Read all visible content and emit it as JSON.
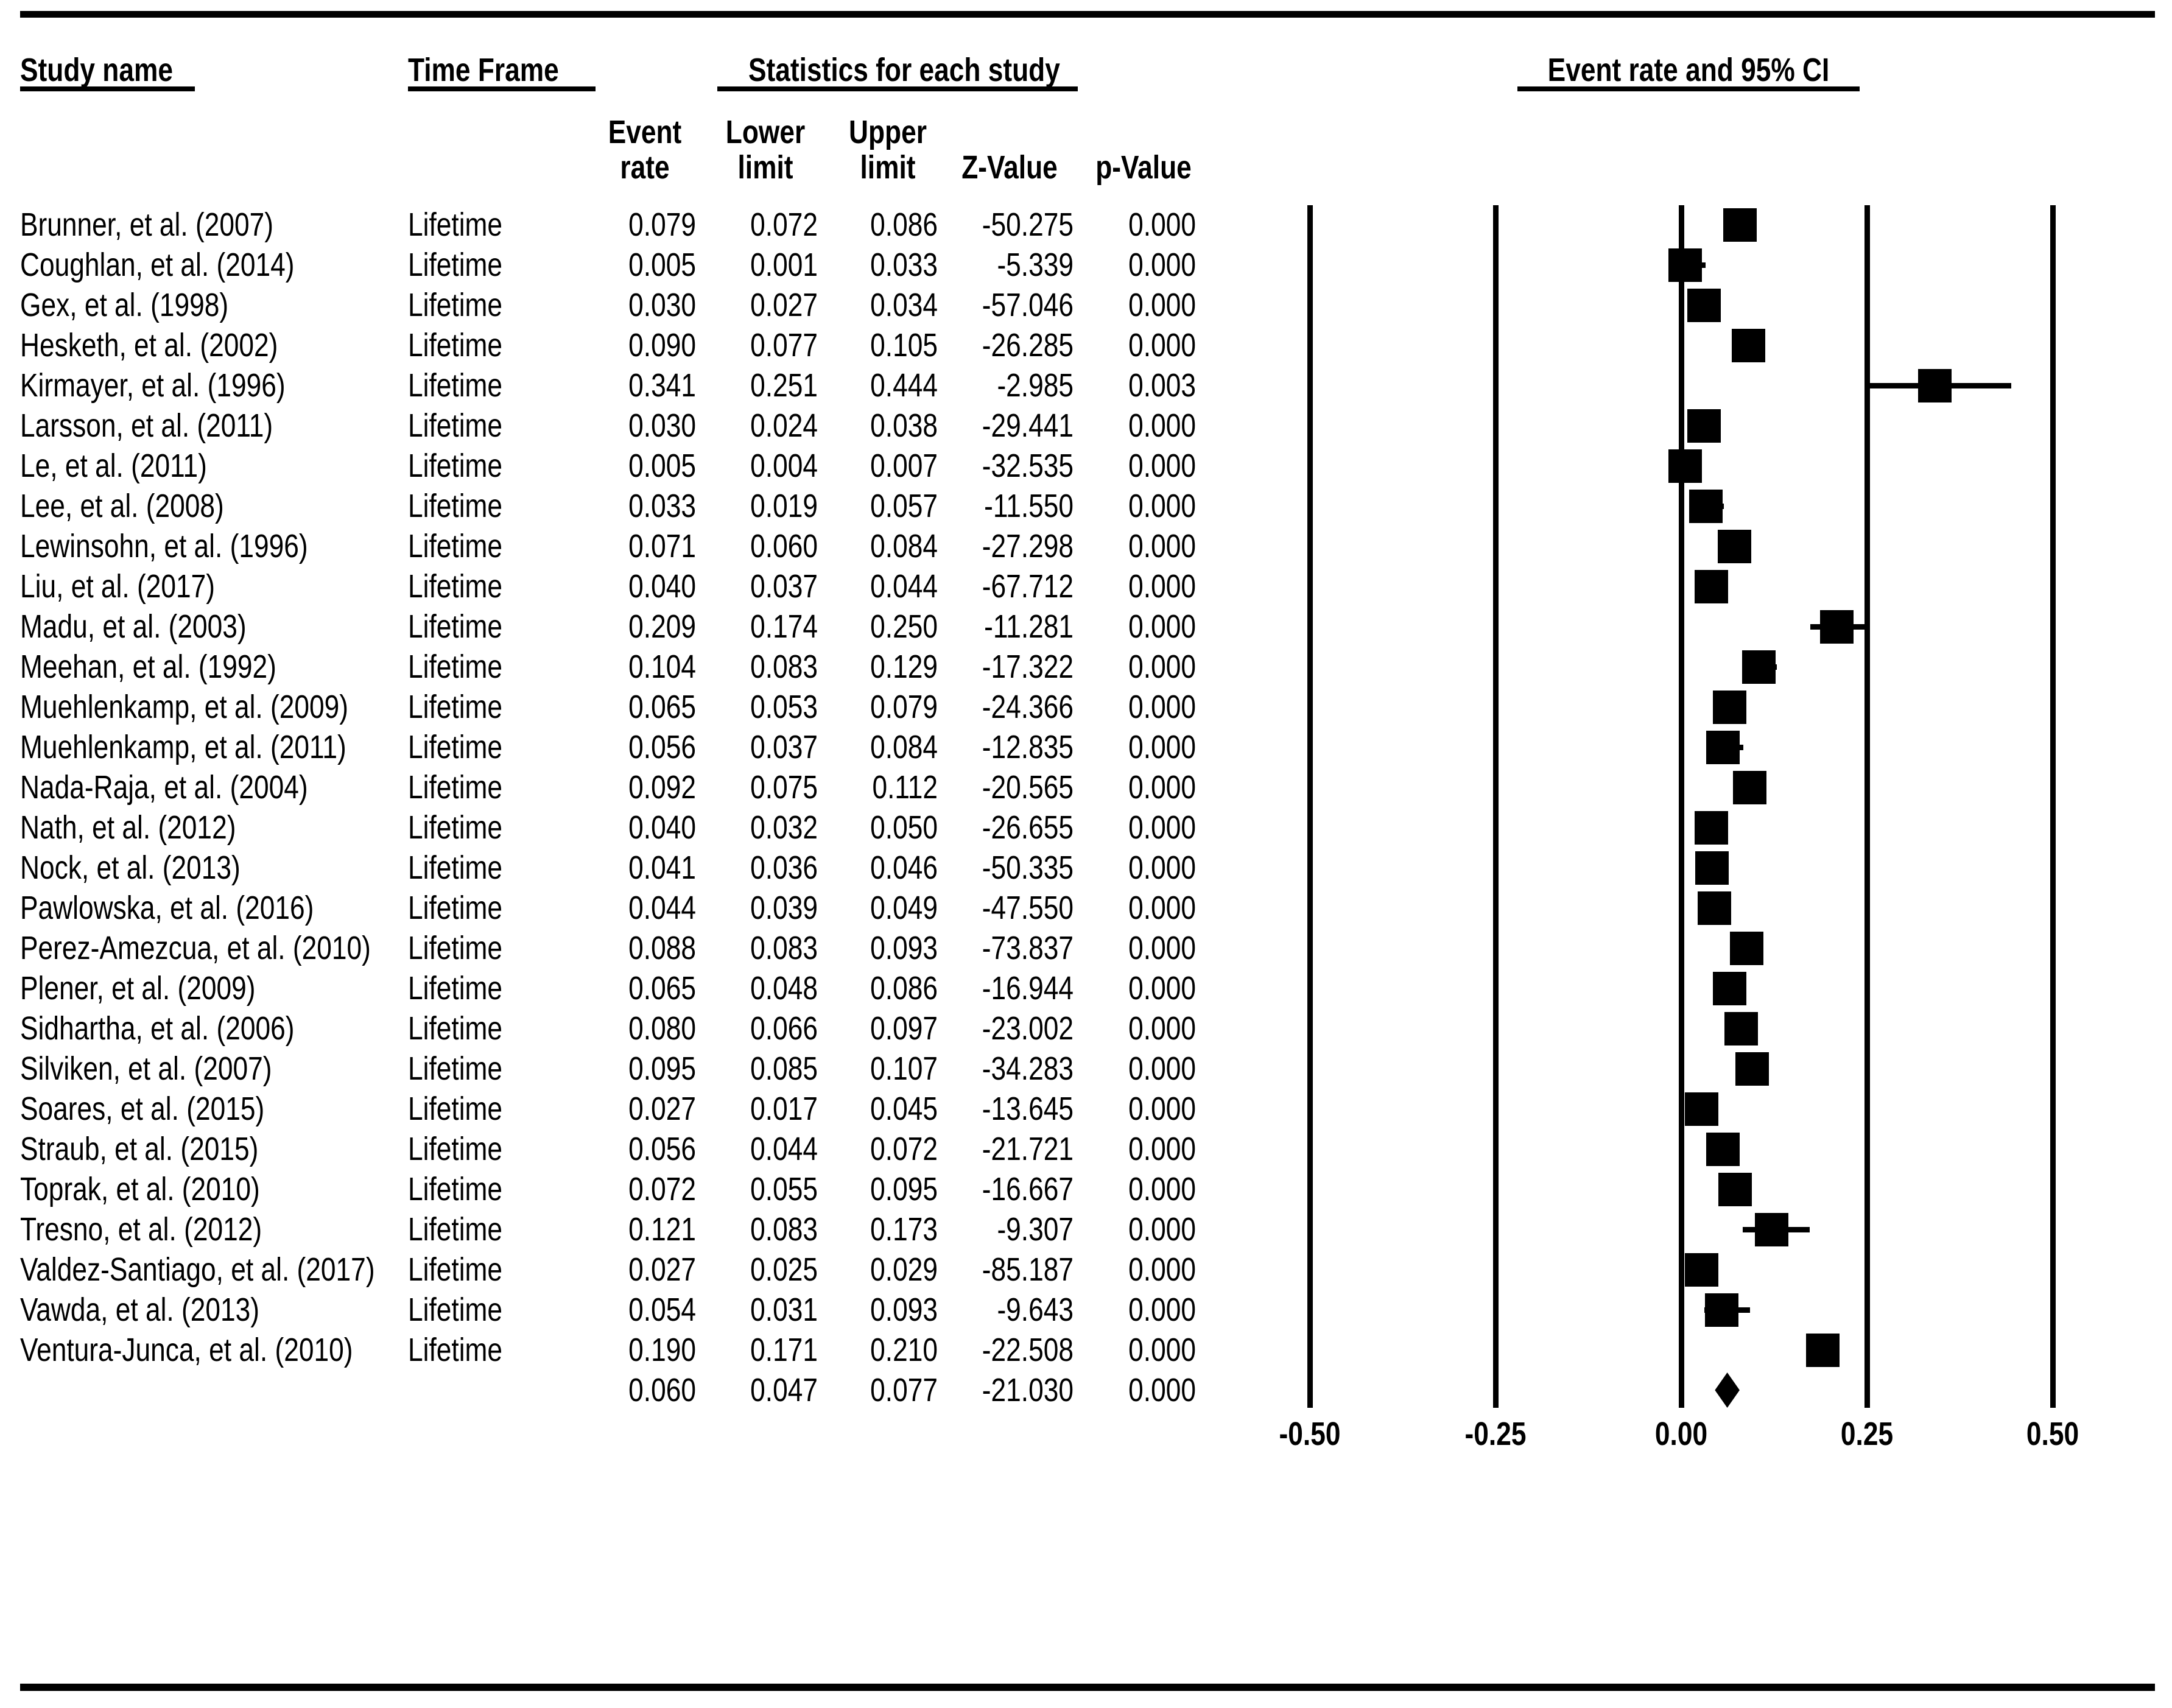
{
  "header": {
    "study_name": "Study name",
    "time_frame": "Time Frame",
    "stats_group": "Statistics for each study",
    "plot_group": "Event rate and 95% CI",
    "sub": {
      "event_1": "Event",
      "event_2": "rate",
      "lower_1": "Lower",
      "lower_2": "limit",
      "upper_1": "Upper",
      "upper_2": "limit",
      "z": "Z-Value",
      "p": "p-Value"
    }
  },
  "colors": {
    "ink": "#000000",
    "background": "#ffffff"
  },
  "chart_data": {
    "type": "scatter",
    "variant": "forest-plot-meta-analysis",
    "title": "Event rate and 95% CI",
    "x_axis": {
      "ticks": [
        "-0.50",
        "-0.25",
        "0.00",
        "0.25",
        "0.50"
      ],
      "tick_values": [
        -0.5,
        -0.25,
        0.0,
        0.25,
        0.5
      ],
      "range": [
        -0.5,
        0.5
      ],
      "gridlines": true
    },
    "legend_position": "none",
    "marker": "square",
    "summary_marker": "diamond",
    "studies": [
      {
        "name": "Brunner, et al. (2007)",
        "time_frame": "Lifetime",
        "event_rate": "0.079",
        "lower_limit": "0.072",
        "upper_limit": "0.086",
        "z_value": "-50.275",
        "p_value": "0.000"
      },
      {
        "name": "Coughlan, et al. (2014)",
        "time_frame": "Lifetime",
        "event_rate": "0.005",
        "lower_limit": "0.001",
        "upper_limit": "0.033",
        "z_value": "-5.339",
        "p_value": "0.000"
      },
      {
        "name": "Gex, et al. (1998)",
        "time_frame": "Lifetime",
        "event_rate": "0.030",
        "lower_limit": "0.027",
        "upper_limit": "0.034",
        "z_value": "-57.046",
        "p_value": "0.000"
      },
      {
        "name": "Hesketh, et al. (2002)",
        "time_frame": "Lifetime",
        "event_rate": "0.090",
        "lower_limit": "0.077",
        "upper_limit": "0.105",
        "z_value": "-26.285",
        "p_value": "0.000"
      },
      {
        "name": "Kirmayer, et al. (1996)",
        "time_frame": "Lifetime",
        "event_rate": "0.341",
        "lower_limit": "0.251",
        "upper_limit": "0.444",
        "z_value": "-2.985",
        "p_value": "0.003"
      },
      {
        "name": "Larsson, et al. (2011)",
        "time_frame": "Lifetime",
        "event_rate": "0.030",
        "lower_limit": "0.024",
        "upper_limit": "0.038",
        "z_value": "-29.441",
        "p_value": "0.000"
      },
      {
        "name": "Le, et al. (2011)",
        "time_frame": "Lifetime",
        "event_rate": "0.005",
        "lower_limit": "0.004",
        "upper_limit": "0.007",
        "z_value": "-32.535",
        "p_value": "0.000"
      },
      {
        "name": "Lee, et al. (2008)",
        "time_frame": "Lifetime",
        "event_rate": "0.033",
        "lower_limit": "0.019",
        "upper_limit": "0.057",
        "z_value": "-11.550",
        "p_value": "0.000"
      },
      {
        "name": "Lewinsohn, et al. (1996)",
        "time_frame": "Lifetime",
        "event_rate": "0.071",
        "lower_limit": "0.060",
        "upper_limit": "0.084",
        "z_value": "-27.298",
        "p_value": "0.000"
      },
      {
        "name": "Liu, et al. (2017)",
        "time_frame": "Lifetime",
        "event_rate": "0.040",
        "lower_limit": "0.037",
        "upper_limit": "0.044",
        "z_value": "-67.712",
        "p_value": "0.000"
      },
      {
        "name": "Madu, et al. (2003)",
        "time_frame": "Lifetime",
        "event_rate": "0.209",
        "lower_limit": "0.174",
        "upper_limit": "0.250",
        "z_value": "-11.281",
        "p_value": "0.000"
      },
      {
        "name": "Meehan, et al. (1992)",
        "time_frame": "Lifetime",
        "event_rate": "0.104",
        "lower_limit": "0.083",
        "upper_limit": "0.129",
        "z_value": "-17.322",
        "p_value": "0.000"
      },
      {
        "name": "Muehlenkamp, et al. (2009)",
        "time_frame": "Lifetime",
        "event_rate": "0.065",
        "lower_limit": "0.053",
        "upper_limit": "0.079",
        "z_value": "-24.366",
        "p_value": "0.000"
      },
      {
        "name": "Muehlenkamp, et al. (2011)",
        "time_frame": "Lifetime",
        "event_rate": "0.056",
        "lower_limit": "0.037",
        "upper_limit": "0.084",
        "z_value": "-12.835",
        "p_value": "0.000"
      },
      {
        "name": "Nada-Raja, et al. (2004)",
        "time_frame": "Lifetime",
        "event_rate": "0.092",
        "lower_limit": "0.075",
        "upper_limit": "0.112",
        "z_value": "-20.565",
        "p_value": "0.000"
      },
      {
        "name": "Nath, et al. (2012)",
        "time_frame": "Lifetime",
        "event_rate": "0.040",
        "lower_limit": "0.032",
        "upper_limit": "0.050",
        "z_value": "-26.655",
        "p_value": "0.000"
      },
      {
        "name": "Nock, et al. (2013)",
        "time_frame": "Lifetime",
        "event_rate": "0.041",
        "lower_limit": "0.036",
        "upper_limit": "0.046",
        "z_value": "-50.335",
        "p_value": "0.000"
      },
      {
        "name": "Pawlowska, et al. (2016)",
        "time_frame": "Lifetime",
        "event_rate": "0.044",
        "lower_limit": "0.039",
        "upper_limit": "0.049",
        "z_value": "-47.550",
        "p_value": "0.000"
      },
      {
        "name": "Perez-Amezcua, et al. (2010)",
        "time_frame": "Lifetime",
        "event_rate": "0.088",
        "lower_limit": "0.083",
        "upper_limit": "0.093",
        "z_value": "-73.837",
        "p_value": "0.000"
      },
      {
        "name": "Plener, et al. (2009)",
        "time_frame": "Lifetime",
        "event_rate": "0.065",
        "lower_limit": "0.048",
        "upper_limit": "0.086",
        "z_value": "-16.944",
        "p_value": "0.000"
      },
      {
        "name": "Sidhartha, et al. (2006)",
        "time_frame": "Lifetime",
        "event_rate": "0.080",
        "lower_limit": "0.066",
        "upper_limit": "0.097",
        "z_value": "-23.002",
        "p_value": "0.000"
      },
      {
        "name": "Silviken, et al. (2007)",
        "time_frame": "Lifetime",
        "event_rate": "0.095",
        "lower_limit": "0.085",
        "upper_limit": "0.107",
        "z_value": "-34.283",
        "p_value": "0.000"
      },
      {
        "name": "Soares, et al. (2015)",
        "time_frame": "Lifetime",
        "event_rate": "0.027",
        "lower_limit": "0.017",
        "upper_limit": "0.045",
        "z_value": "-13.645",
        "p_value": "0.000"
      },
      {
        "name": "Straub, et al. (2015)",
        "time_frame": "Lifetime",
        "event_rate": "0.056",
        "lower_limit": "0.044",
        "upper_limit": "0.072",
        "z_value": "-21.721",
        "p_value": "0.000"
      },
      {
        "name": "Toprak, et al. (2010)",
        "time_frame": "Lifetime",
        "event_rate": "0.072",
        "lower_limit": "0.055",
        "upper_limit": "0.095",
        "z_value": "-16.667",
        "p_value": "0.000"
      },
      {
        "name": "Tresno, et al. (2012)",
        "time_frame": "Lifetime",
        "event_rate": "0.121",
        "lower_limit": "0.083",
        "upper_limit": "0.173",
        "z_value": "-9.307",
        "p_value": "0.000"
      },
      {
        "name": "Valdez-Santiago, et al. (2017)",
        "time_frame": "Lifetime",
        "event_rate": "0.027",
        "lower_limit": "0.025",
        "upper_limit": "0.029",
        "z_value": "-85.187",
        "p_value": "0.000"
      },
      {
        "name": "Vawda, et al. (2013)",
        "time_frame": "Lifetime",
        "event_rate": "0.054",
        "lower_limit": "0.031",
        "upper_limit": "0.093",
        "z_value": "-9.643",
        "p_value": "0.000"
      },
      {
        "name": "Ventura-Junca, et al. (2010)",
        "time_frame": "Lifetime",
        "event_rate": "0.190",
        "lower_limit": "0.171",
        "upper_limit": "0.210",
        "z_value": "-22.508",
        "p_value": "0.000"
      }
    ],
    "summary": {
      "event_rate": "0.060",
      "lower_limit": "0.047",
      "upper_limit": "0.077",
      "z_value": "-21.030",
      "p_value": "0.000"
    }
  }
}
